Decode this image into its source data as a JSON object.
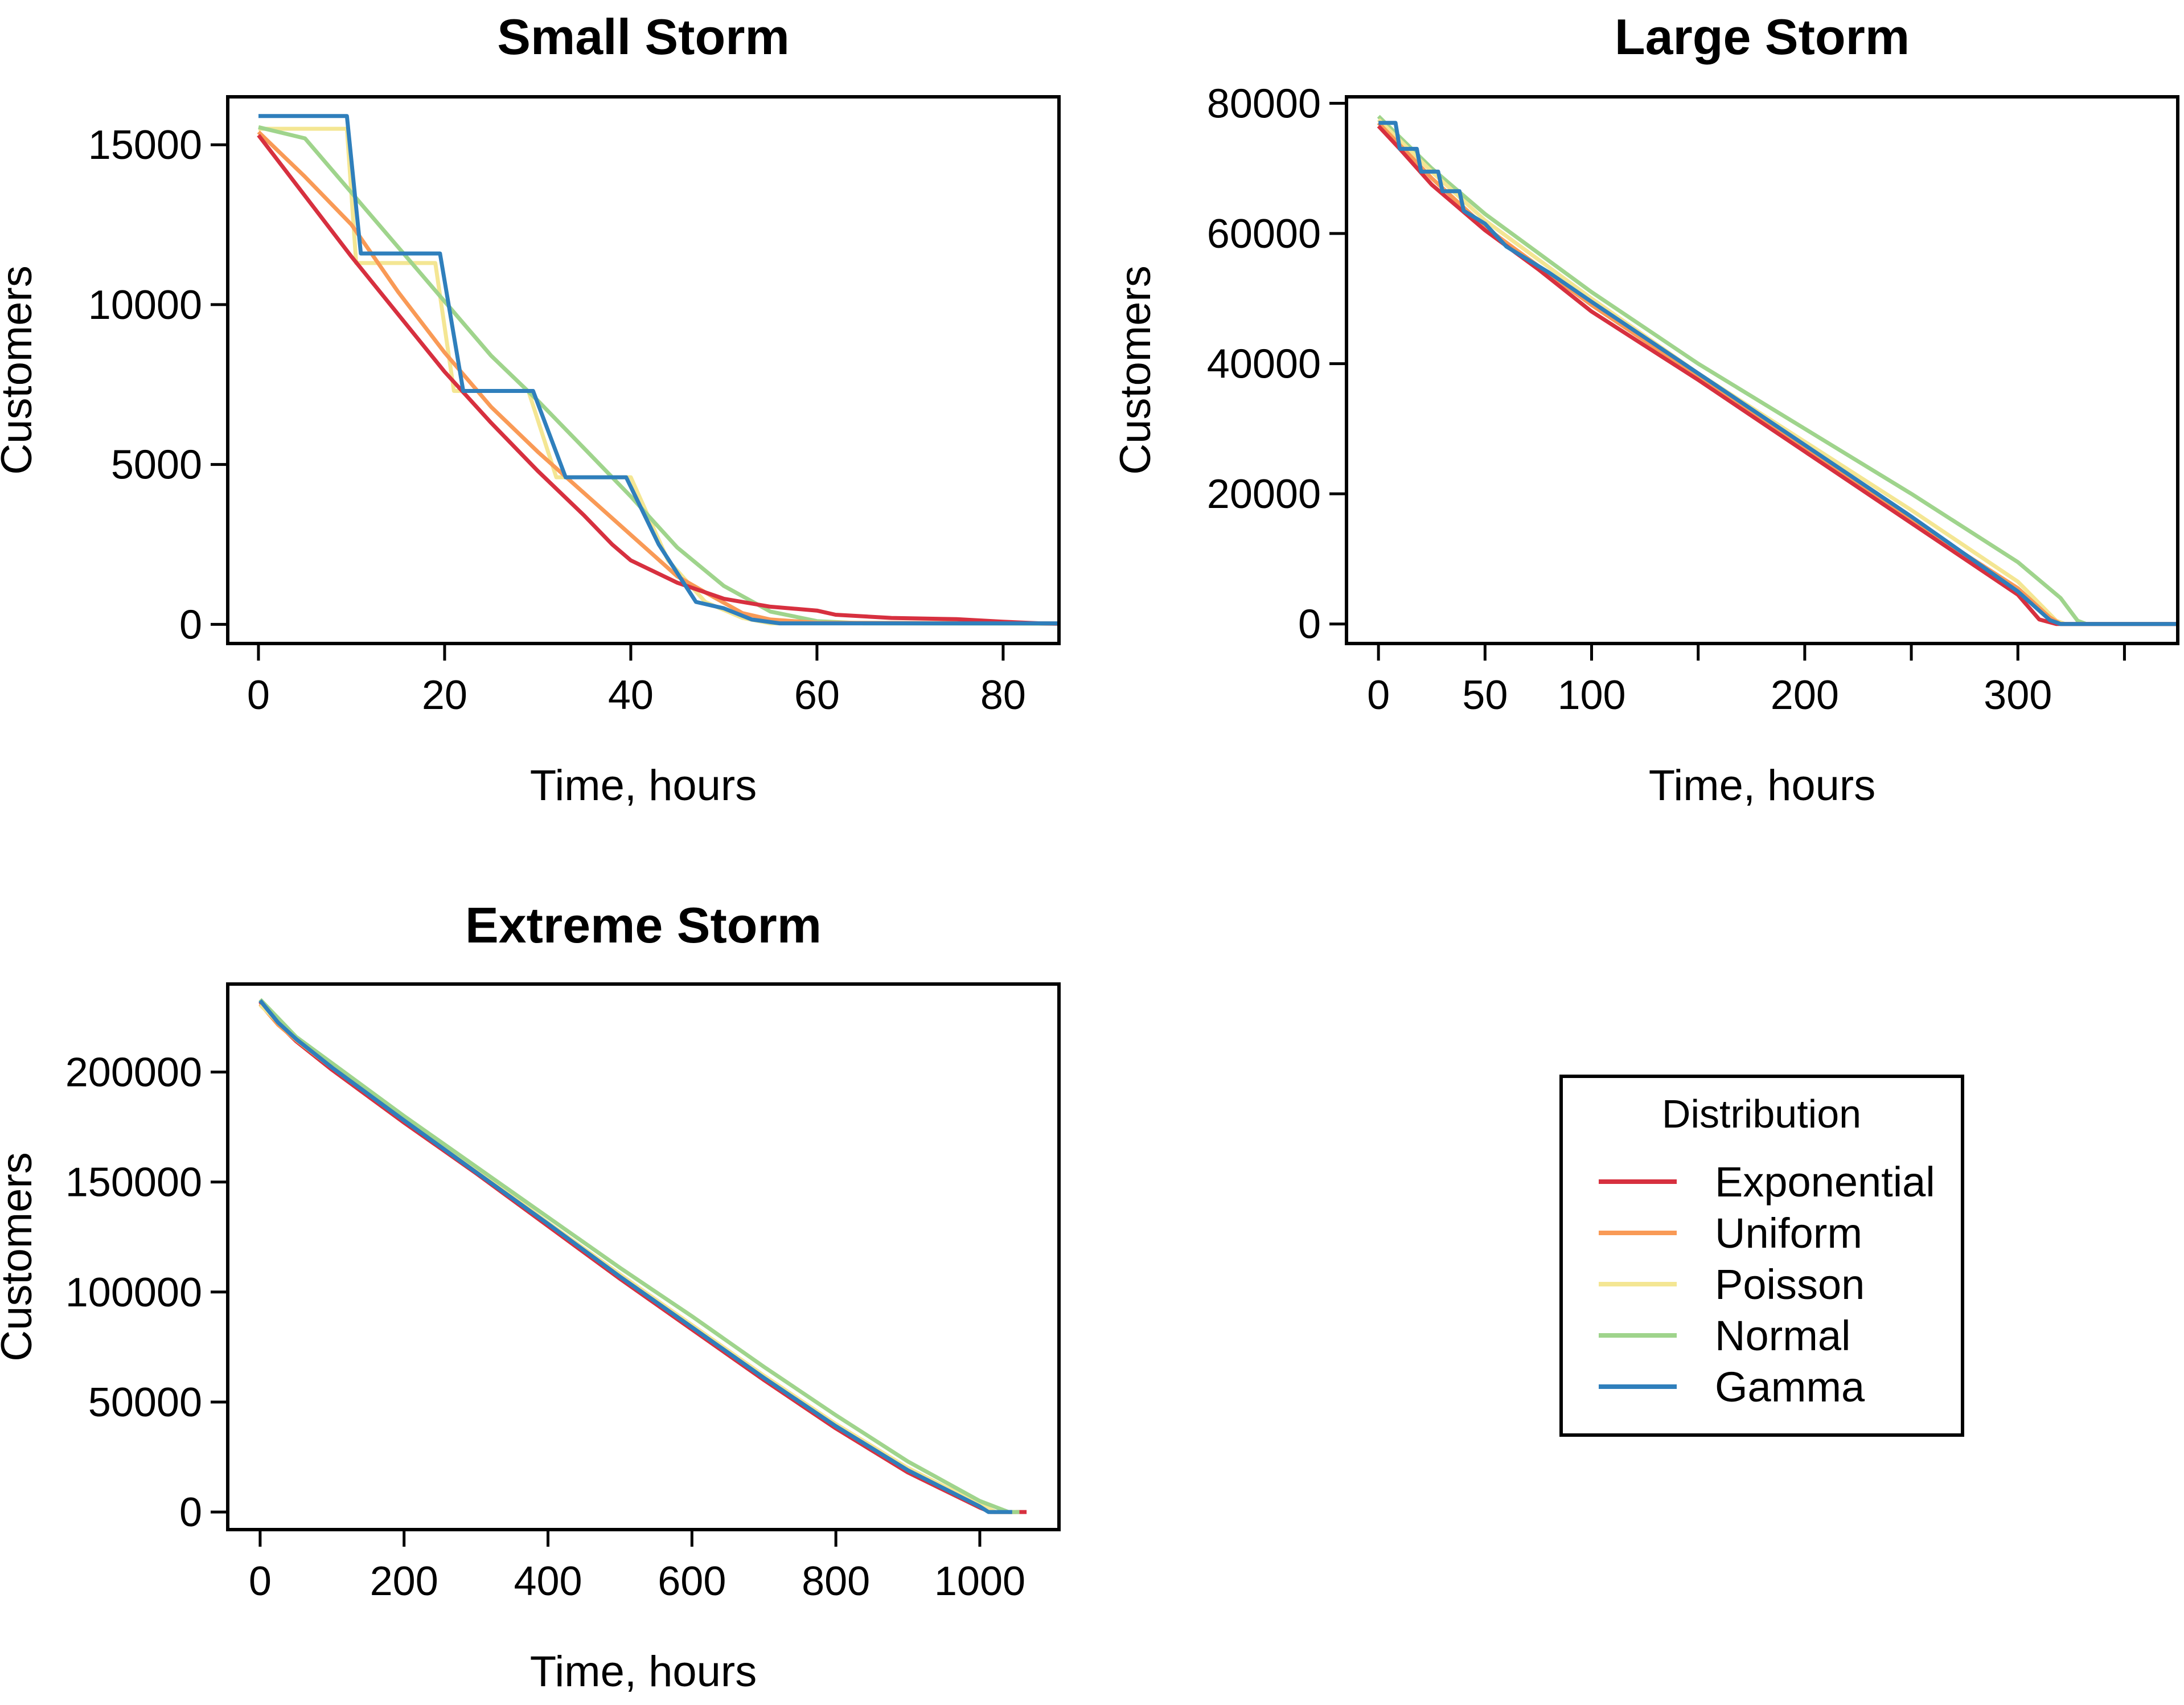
{
  "legend": {
    "title": "Distribution",
    "entries": [
      {
        "name": "Exponential",
        "color": "#d7303f"
      },
      {
        "name": "Uniform",
        "color": "#f99a56"
      },
      {
        "name": "Poisson",
        "color": "#f4e693"
      },
      {
        "name": "Normal",
        "color": "#9fd48c"
      },
      {
        "name": "Gamma",
        "color": "#2f7fbc"
      }
    ]
  },
  "chart_data": [
    {
      "type": "line",
      "title": "Small Storm",
      "xlabel": "Time, hours",
      "ylabel": "Customers",
      "xlim": [
        -3.3,
        86
      ],
      "ylim": [
        -600,
        16500
      ],
      "xticks": [
        0,
        20,
        40,
        60,
        80
      ],
      "yticks": [
        0,
        5000,
        10000,
        15000
      ],
      "series": [
        {
          "name": "Poisson",
          "step": true,
          "points": [
            [
              0,
              15500
            ],
            [
              9.5,
              15500
            ],
            [
              10.5,
              11300
            ],
            [
              19,
              11300
            ],
            [
              21,
              7300
            ],
            [
              29,
              7300
            ],
            [
              32,
              4600
            ],
            [
              40,
              4600
            ],
            [
              44,
              2000
            ],
            [
              48,
              700
            ],
            [
              52,
              200
            ],
            [
              55,
              30
            ],
            [
              86,
              30
            ]
          ]
        },
        {
          "name": "Normal",
          "points": [
            [
              0,
              15550
            ],
            [
              5,
              15200
            ],
            [
              10,
              13500
            ],
            [
              15,
              11800
            ],
            [
              20,
              10100
            ],
            [
              25,
              8400
            ],
            [
              30,
              7000
            ],
            [
              35,
              5500
            ],
            [
              40,
              4000
            ],
            [
              45,
              2400
            ],
            [
              50,
              1200
            ],
            [
              55,
              400
            ],
            [
              60,
              100
            ],
            [
              65,
              30
            ],
            [
              86,
              20
            ]
          ]
        },
        {
          "name": "Uniform",
          "points": [
            [
              0,
              15400
            ],
            [
              5,
              14000
            ],
            [
              10,
              12500
            ],
            [
              15,
              10400
            ],
            [
              20,
              8500
            ],
            [
              25,
              6800
            ],
            [
              30,
              5400
            ],
            [
              35,
              4100
            ],
            [
              40,
              2800
            ],
            [
              45,
              1500
            ],
            [
              48,
              1000
            ],
            [
              52,
              350
            ],
            [
              55,
              150
            ],
            [
              60,
              50
            ],
            [
              86,
              30
            ]
          ]
        },
        {
          "name": "Exponential",
          "points": [
            [
              0,
              15300
            ],
            [
              5,
              13400
            ],
            [
              10,
              11500
            ],
            [
              15,
              9700
            ],
            [
              20,
              7900
            ],
            [
              25,
              6300
            ],
            [
              30,
              4800
            ],
            [
              35,
              3400
            ],
            [
              38,
              2500
            ],
            [
              40,
              2000
            ],
            [
              45,
              1300
            ],
            [
              50,
              800
            ],
            [
              55,
              550
            ],
            [
              60,
              430
            ],
            [
              62,
              300
            ],
            [
              68,
              200
            ],
            [
              75,
              160
            ],
            [
              80,
              80
            ],
            [
              84,
              30
            ],
            [
              86,
              20
            ]
          ]
        },
        {
          "name": "Gamma",
          "step": true,
          "points": [
            [
              0,
              15900
            ],
            [
              9.5,
              15900
            ],
            [
              11,
              11600
            ],
            [
              19.5,
              11600
            ],
            [
              22,
              7300
            ],
            [
              29.5,
              7300
            ],
            [
              33,
              4600
            ],
            [
              39.5,
              4600
            ],
            [
              43,
              2500
            ],
            [
              47,
              700
            ],
            [
              50,
              500
            ],
            [
              53,
              150
            ],
            [
              56,
              30
            ],
            [
              86,
              30
            ]
          ]
        }
      ]
    },
    {
      "type": "line",
      "title": "Large Storm",
      "xlabel": "Time, hours",
      "ylabel": "Customers",
      "xlim": [
        -15,
        375
      ],
      "ylim": [
        -3000,
        81000
      ],
      "xticks": [
        0,
        50,
        100,
        150,
        200,
        250,
        300,
        350
      ],
      "xtick_labels": [
        "0",
        "50",
        "100",
        "",
        "200",
        "",
        "300",
        ""
      ],
      "yticks": [
        0,
        20000,
        40000,
        60000,
        80000
      ],
      "series": [
        {
          "name": "Normal",
          "points": [
            [
              0,
              78000
            ],
            [
              25,
              70000
            ],
            [
              50,
              63000
            ],
            [
              100,
              51000
            ],
            [
              150,
              40000
            ],
            [
              200,
              30000
            ],
            [
              250,
              20000
            ],
            [
              300,
              9500
            ],
            [
              320,
              4000
            ],
            [
              328,
              500
            ],
            [
              332,
              0
            ],
            [
              375,
              0
            ]
          ]
        },
        {
          "name": "Poisson",
          "points": [
            [
              0,
              77500
            ],
            [
              25,
              69500
            ],
            [
              50,
              62000
            ],
            [
              100,
              50000
            ],
            [
              150,
              38500
            ],
            [
              200,
              28000
            ],
            [
              250,
              17500
            ],
            [
              300,
              6500
            ],
            [
              318,
              500
            ],
            [
              322,
              0
            ],
            [
              375,
              0
            ]
          ]
        },
        {
          "name": "Uniform",
          "points": [
            [
              0,
              77000
            ],
            [
              25,
              68500
            ],
            [
              50,
              61000
            ],
            [
              100,
              49000
            ],
            [
              150,
              38000
            ],
            [
              200,
              27000
            ],
            [
              250,
              16000
            ],
            [
              300,
              5500
            ],
            [
              315,
              1000
            ],
            [
              320,
              0
            ],
            [
              375,
              0
            ]
          ]
        },
        {
          "name": "Exponential",
          "points": [
            [
              0,
              76500
            ],
            [
              10,
              73000
            ],
            [
              25,
              67500
            ],
            [
              50,
              60500
            ],
            [
              75,
              54500
            ],
            [
              100,
              48000
            ],
            [
              150,
              37500
            ],
            [
              200,
              26500
            ],
            [
              250,
              15500
            ],
            [
              300,
              4500
            ],
            [
              310,
              700
            ],
            [
              318,
              0
            ],
            [
              375,
              0
            ]
          ]
        },
        {
          "name": "Gamma",
          "step": true,
          "points": [
            [
              0,
              77000
            ],
            [
              8,
              77000
            ],
            [
              10,
              73000
            ],
            [
              18,
              73000
            ],
            [
              20,
              69500
            ],
            [
              28,
              69500
            ],
            [
              30,
              66500
            ],
            [
              38,
              66500
            ],
            [
              40,
              63500
            ],
            [
              50,
              61500
            ],
            [
              60,
              58000
            ],
            [
              80,
              54000
            ],
            [
              100,
              49500
            ],
            [
              125,
              44000
            ],
            [
              150,
              38500
            ],
            [
              200,
              27500
            ],
            [
              250,
              16500
            ],
            [
              300,
              5000
            ],
            [
              315,
              600
            ],
            [
              320,
              0
            ],
            [
              375,
              0
            ]
          ]
        }
      ]
    },
    {
      "type": "line",
      "title": "Extreme Storm",
      "xlabel": "Time, hours",
      "ylabel": "Customers",
      "xlim": [
        -45,
        1110
      ],
      "ylim": [
        -8000,
        240000
      ],
      "xticks": [
        0,
        200,
        400,
        600,
        800,
        1000
      ],
      "yticks": [
        0,
        50000,
        100000,
        150000,
        200000
      ],
      "series": [
        {
          "name": "Exponential",
          "points": [
            [
              0,
              232000
            ],
            [
              25,
              222000
            ],
            [
              50,
              214000
            ],
            [
              100,
              201000
            ],
            [
              200,
              177000
            ],
            [
              300,
              154000
            ],
            [
              400,
              130000
            ],
            [
              500,
              106000
            ],
            [
              600,
              83000
            ],
            [
              700,
              60000
            ],
            [
              800,
              38000
            ],
            [
              900,
              18000
            ],
            [
              1000,
              2000
            ],
            [
              1015,
              0
            ],
            [
              1065,
              0
            ]
          ]
        },
        {
          "name": "Uniform",
          "points": [
            [
              0,
              231000
            ],
            [
              25,
              221500
            ],
            [
              50,
              214500
            ],
            [
              100,
              202000
            ],
            [
              200,
              178000
            ],
            [
              300,
              155000
            ],
            [
              400,
              131000
            ],
            [
              500,
              107000
            ],
            [
              600,
              84000
            ],
            [
              700,
              61000
            ],
            [
              800,
              39000
            ],
            [
              900,
              19000
            ],
            [
              1000,
              3000
            ],
            [
              1020,
              0
            ],
            [
              1050,
              0
            ]
          ]
        },
        {
          "name": "Poisson",
          "points": [
            [
              0,
              230500
            ],
            [
              50,
              215000
            ],
            [
              100,
              202500
            ],
            [
              200,
              178500
            ],
            [
              300,
              155500
            ],
            [
              400,
              131500
            ],
            [
              500,
              108000
            ],
            [
              600,
              85000
            ],
            [
              700,
              62000
            ],
            [
              800,
              40000
            ],
            [
              900,
              20000
            ],
            [
              1000,
              3500
            ],
            [
              1022,
              0
            ],
            [
              1050,
              0
            ]
          ]
        },
        {
          "name": "Normal",
          "points": [
            [
              0,
              233000
            ],
            [
              50,
              216000
            ],
            [
              100,
              204000
            ],
            [
              200,
              180000
            ],
            [
              300,
              157000
            ],
            [
              400,
              134000
            ],
            [
              500,
              111000
            ],
            [
              600,
              89000
            ],
            [
              700,
              66000
            ],
            [
              800,
              44000
            ],
            [
              900,
              23000
            ],
            [
              1000,
              5000
            ],
            [
              1040,
              0
            ],
            [
              1055,
              0
            ]
          ]
        },
        {
          "name": "Gamma",
          "points": [
            [
              0,
              232500
            ],
            [
              25,
              222500
            ],
            [
              50,
              215000
            ],
            [
              100,
              202000
            ],
            [
              200,
              178000
            ],
            [
              300,
              154500
            ],
            [
              400,
              131000
            ],
            [
              500,
              107000
            ],
            [
              600,
              84000
            ],
            [
              700,
              61000
            ],
            [
              800,
              39000
            ],
            [
              900,
              19000
            ],
            [
              1000,
              2500
            ],
            [
              1012,
              0
            ],
            [
              1045,
              0
            ]
          ]
        }
      ]
    }
  ]
}
